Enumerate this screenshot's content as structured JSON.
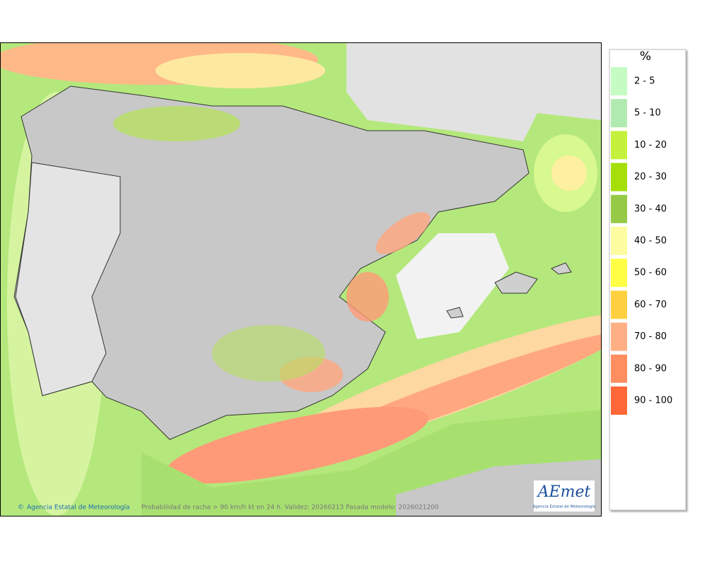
{
  "map": {
    "footer": {
      "agency": "Agencia Estatal de Meteorología",
      "caption": "Probabilidad de racha > 90 km/h kt en 24 h. Validez: 20260213 Pasada modelo: 2026021200"
    },
    "logo": {
      "name": "AEmet",
      "subtitle": "Agencia Estatal de Meteorología"
    },
    "legend": {
      "title": "%",
      "items": [
        {
          "label": "2 - 5",
          "color": "#c4fcc4"
        },
        {
          "label": "5 - 10",
          "color": "#b0eab0"
        },
        {
          "label": "10 - 20",
          "color": "#c4f23c"
        },
        {
          "label": "20 - 30",
          "color": "#a6de08"
        },
        {
          "label": "30 - 40",
          "color": "#96ca46"
        },
        {
          "label": "40 - 50",
          "color": "#fdfca0"
        },
        {
          "label": "50 - 60",
          "color": "#fefe44"
        },
        {
          "label": "60 - 70",
          "color": "#fed040"
        },
        {
          "label": "70 - 80",
          "color": "#feb084"
        },
        {
          "label": "80 - 90",
          "color": "#fe8e60"
        },
        {
          "label": "90 - 100",
          "color": "#fe6838"
        }
      ]
    }
  }
}
